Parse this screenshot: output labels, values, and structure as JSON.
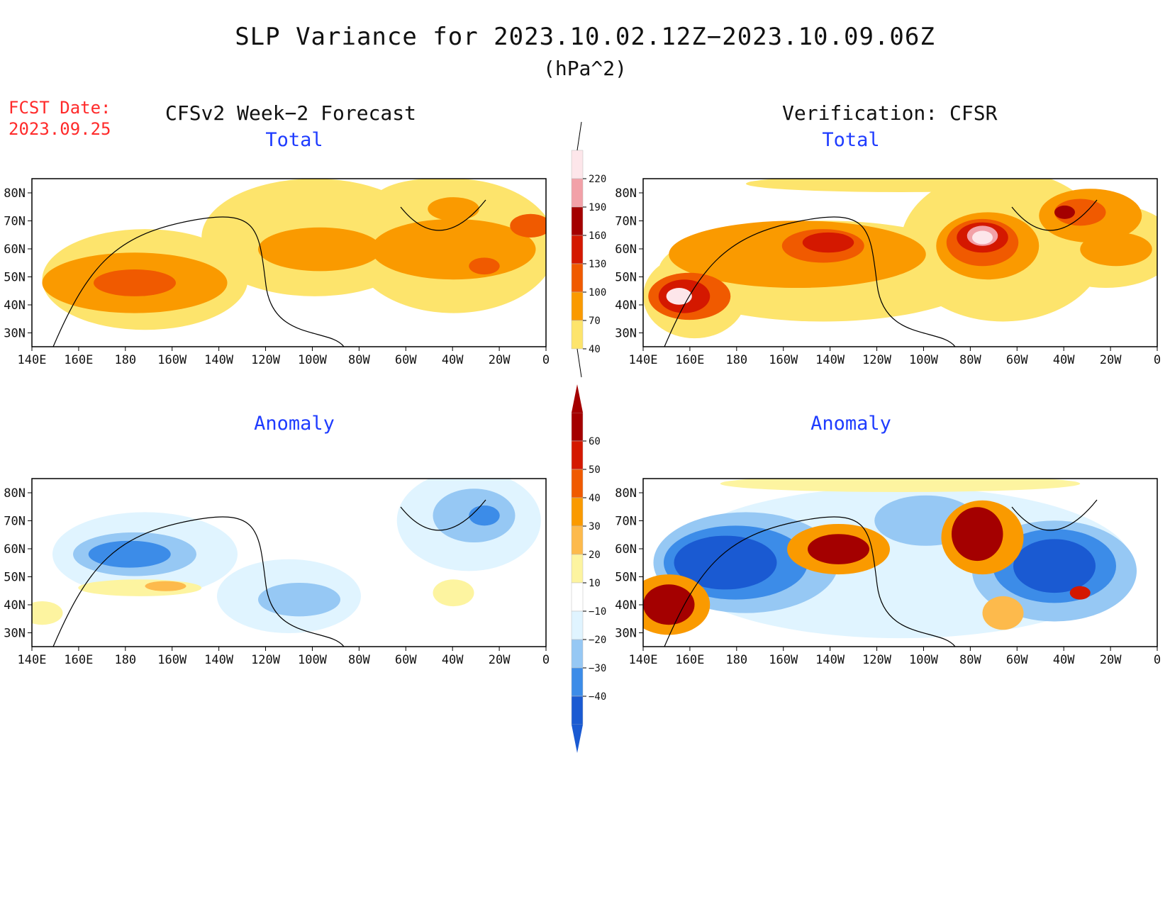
{
  "header": {
    "title": "SLP Variance for 2023.10.02.12Z−2023.10.09.06Z",
    "units": "(hPa^2)",
    "fcst_label": "FCST Date:",
    "fcst_date": "2023.09.25",
    "col_left": "CFSv2 Week−2 Forecast",
    "col_right": "Verification: CFSR"
  },
  "panels": [
    {
      "id": "fcst-total",
      "subtitle": "Total",
      "field": "total"
    },
    {
      "id": "verif-total",
      "subtitle": "Total",
      "field": "total"
    },
    {
      "id": "fcst-anom",
      "subtitle": "Anomaly",
      "field": "anomaly"
    },
    {
      "id": "verif-anom",
      "subtitle": "Anomaly",
      "field": "anomaly"
    }
  ],
  "axes": {
    "lat_labels": [
      "80N",
      "70N",
      "60N",
      "50N",
      "40N",
      "30N"
    ],
    "lon_labels": [
      "140E",
      "160E",
      "180",
      "160W",
      "140W",
      "120W",
      "100W",
      "80W",
      "60W",
      "40W",
      "20W",
      "0"
    ]
  },
  "colorbar_total": {
    "labels": [
      "220",
      "190",
      "160",
      "130",
      "100",
      "70",
      "40"
    ],
    "colors": [
      "#fde6ea",
      "#f2a1a8",
      "#a40000",
      "#d41800",
      "#f05a00",
      "#fa9a00",
      "#fde46c"
    ]
  },
  "colorbar_anomaly": {
    "labels": [
      "60",
      "50",
      "40",
      "30",
      "20",
      "10",
      "−10",
      "−20",
      "−30",
      "−40"
    ],
    "colors": [
      "#a40000",
      "#d41800",
      "#f05a00",
      "#fa9a00",
      "#fdba4c",
      "#fdf4a0",
      "#ffffff",
      "#e0f4ff",
      "#96c8f4",
      "#3c8ce8",
      "#1a5ad2"
    ]
  },
  "palette": {
    "total": [
      "#fde46c",
      "#fa9a00",
      "#f05a00",
      "#d41800",
      "#a40000",
      "#f2a1a8",
      "#fde6ea"
    ],
    "anom_pos": [
      "#fdf4a0",
      "#fdba4c",
      "#fa9a00",
      "#f05a00",
      "#d41800",
      "#a40000"
    ],
    "anom_neg": [
      "#e0f4ff",
      "#96c8f4",
      "#3c8ce8",
      "#1a5ad2"
    ],
    "title_blue": "#1f3cff",
    "fcst_red": "#ff2a2a"
  }
}
